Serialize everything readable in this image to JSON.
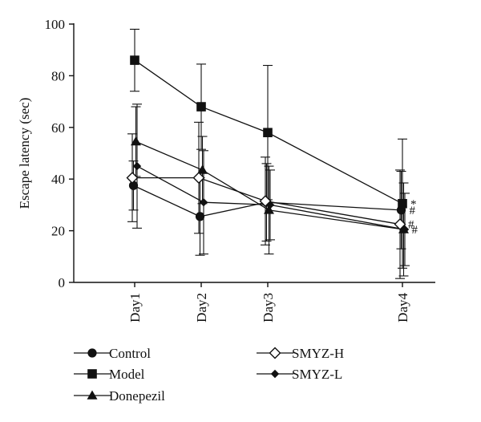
{
  "chart_data": {
    "type": "line",
    "title": "",
    "xlabel": "",
    "ylabel": "Escape latency (sec)",
    "categories": [
      "Day1",
      "Day2",
      "Day3",
      "Day4"
    ],
    "ylim": [
      0,
      100
    ],
    "yticks": [
      "0",
      "20",
      "40",
      "60",
      "80",
      "100"
    ],
    "grid": false,
    "legend_position": "bottom",
    "series": [
      {
        "name": "Control",
        "marker": "circle",
        "values": [
          37.5,
          25.5,
          31,
          28
        ],
        "error": [
          9.5,
          15,
          15,
          15
        ]
      },
      {
        "name": "Model",
        "marker": "square",
        "values": [
          86,
          68,
          58,
          30.5
        ],
        "error": [
          12,
          16.5,
          26,
          25
        ]
      },
      {
        "name": "Donepezil",
        "marker": "triangle",
        "values": [
          54.5,
          43.5,
          28,
          20.5
        ],
        "error": [
          13.5,
          13,
          17,
          18
        ]
      },
      {
        "name": "SMYZ-H",
        "marker": "diamond-open",
        "values": [
          40.5,
          40.5,
          31.5,
          22.5
        ],
        "error": [
          17,
          21.5,
          17,
          21
        ]
      },
      {
        "name": "SMYZ-L",
        "marker": "diamond",
        "values": [
          45,
          31,
          30,
          20.5
        ],
        "error": [
          24,
          20,
          13.5,
          14
        ]
      }
    ],
    "annotations": [
      {
        "text": "*",
        "category": "Day4",
        "series": "Model"
      },
      {
        "text": "#",
        "category": "Day4",
        "series": "Control"
      },
      {
        "text": "#",
        "category": "Day4",
        "series": "SMYZ-H"
      },
      {
        "text": "#",
        "category": "Day4",
        "series": "Donepezil"
      }
    ]
  }
}
